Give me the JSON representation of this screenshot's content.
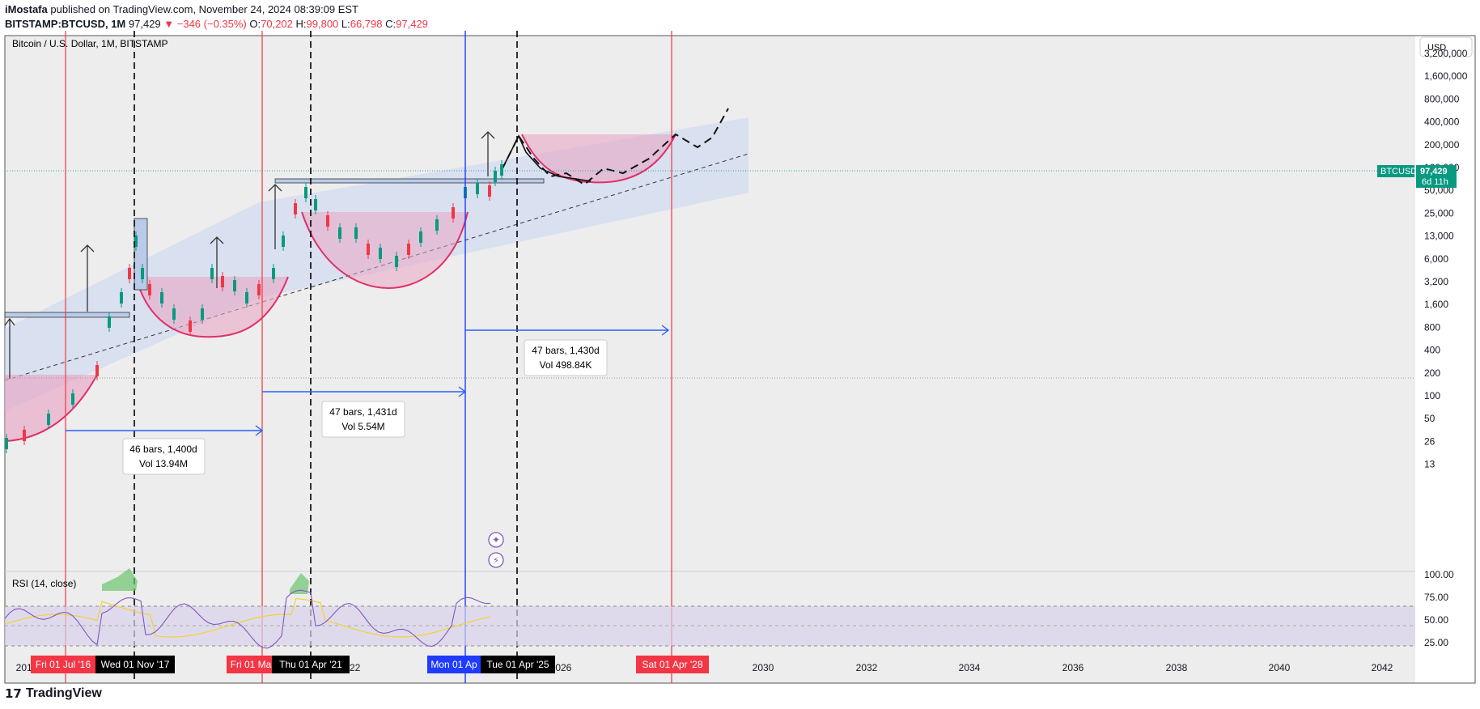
{
  "header": {
    "author": "iMostafa",
    "published_text": "published on TradingView.com, November 24, 2024 08:39:09 EST",
    "symbol": "BITSTAMP:BTCUSD, 1M",
    "last": "97,429",
    "change": "▼ −346 (−0.35%)",
    "o_label": "O:",
    "o_value": "70,202",
    "h_label": "H:",
    "h_value": "99,800",
    "l_label": "L:",
    "l_value": "66,798",
    "c_label": "C:",
    "c_value": "97,429"
  },
  "chart_title": "Bitcoin / U.S. Dollar, 1M, BITSTAMP",
  "currency_button": "USD",
  "price_tag": {
    "symbol": "BTCUSD",
    "price": "97,429",
    "countdown": "6d 11h"
  },
  "rsi_label": "RSI (14, close)",
  "measures": [
    {
      "bars": "46 bars, 1,400d",
      "vol": "Vol 13.94M"
    },
    {
      "bars": "47 bars, 1,431d",
      "vol": "Vol 5.54M"
    },
    {
      "bars": "47 bars, 1,430d",
      "vol": "Vol 498.84K"
    }
  ],
  "date_markers": [
    {
      "label": "Fri 01 Jul '16",
      "color": "#f23645"
    },
    {
      "label": "Wed 01 Nov '17",
      "color": "#000000"
    },
    {
      "label": "Fri 01 Ma",
      "color": "#f23645"
    },
    {
      "label": "Thu 01 Apr '21",
      "color": "#000000"
    },
    {
      "label": "Mon 01 Ap",
      "color": "#1f3bff"
    },
    {
      "label": "Tue 01 Apr '25",
      "color": "#000000"
    },
    {
      "label": "Sat 01 Apr '28",
      "color": "#f23645"
    }
  ],
  "footer": {
    "brand": "TradingView"
  },
  "chart_data": {
    "type": "candlestick",
    "title": "Bitcoin / U.S. Dollar, 1M, BITSTAMP",
    "y_scale": "log",
    "y_ticks": [
      "3,200,000",
      "1,600,000",
      "800,000",
      "400,000",
      "200,000",
      "100,000",
      "50,000",
      "25,000",
      "13,000",
      "6,000",
      "3,200",
      "1,600",
      "800",
      "400",
      "200",
      "100",
      "50",
      "26",
      "13"
    ],
    "x_ticks": [
      "2014",
      "2022",
      "2026",
      "2030",
      "2032",
      "2034",
      "2036",
      "2038",
      "2040",
      "2042"
    ],
    "rsi_ticks": [
      "100.00",
      "75.00",
      "50.00",
      "25.00"
    ],
    "last_price": 97429,
    "annotations": [
      "46 bars, 1,400d",
      "47 bars, 1,431d",
      "47 bars, 1,430d"
    ],
    "rsi": {
      "length": 14,
      "source": "close",
      "upper_band": 70,
      "lower_band": 30
    }
  }
}
